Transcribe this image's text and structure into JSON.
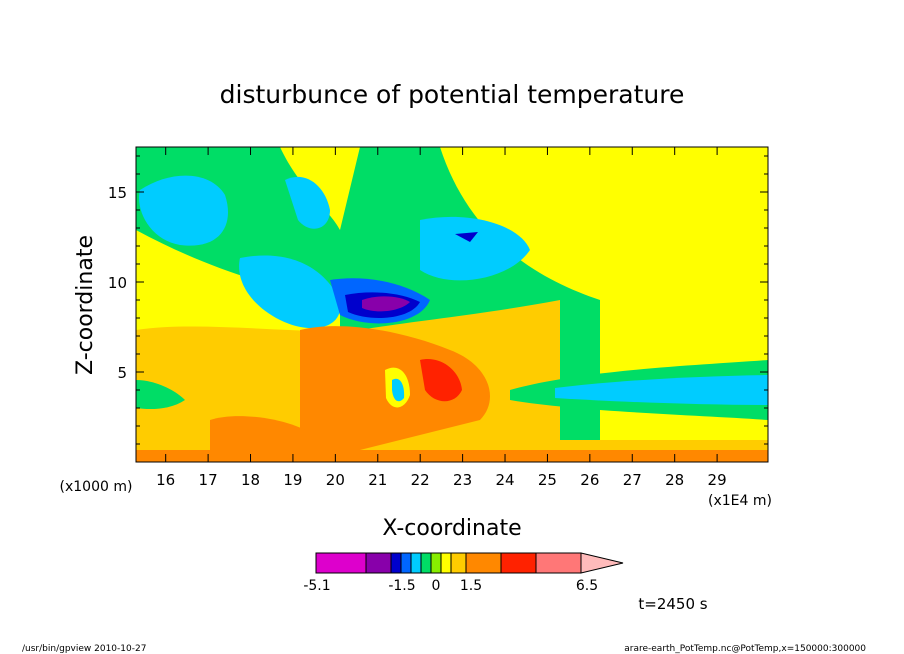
{
  "chart_data": {
    "type": "heatmap",
    "title": "disturbunce of potential temperature",
    "xlabel": "X-coordinate",
    "ylabel": "Z-coordinate",
    "x_unit_left": "(x1000 m)",
    "x_unit_right": "(x1E4 m)",
    "xlim": [
      15.3,
      30.2
    ],
    "ylim": [
      0,
      17.5
    ],
    "x_ticks": [
      "16",
      "17",
      "18",
      "19",
      "20",
      "21",
      "22",
      "23",
      "24",
      "25",
      "26",
      "27",
      "28",
      "29"
    ],
    "y_ticks": [
      "5",
      "10",
      "15"
    ],
    "colorbar": {
      "labels": [
        "-5.1",
        "-1.5",
        "0",
        "1.5",
        "6.5"
      ],
      "colors": [
        "#dd00cc",
        "#8800aa",
        "#0000cc",
        "#0066ff",
        "#00ccff",
        "#00dd66",
        "#88ee00",
        "#ffff00",
        "#ffcc00",
        "#ff8800",
        "#ff2200",
        "#ff7777",
        "#ffbbbb"
      ]
    },
    "annotation": "t=2450 s",
    "grid": false,
    "legend": "colorbar-bottom"
  },
  "footer": {
    "left": "/usr/bin/gpview   2010-10-27",
    "right": "arare-earth_PotTemp.nc@PotTemp,x=150000:300000"
  }
}
